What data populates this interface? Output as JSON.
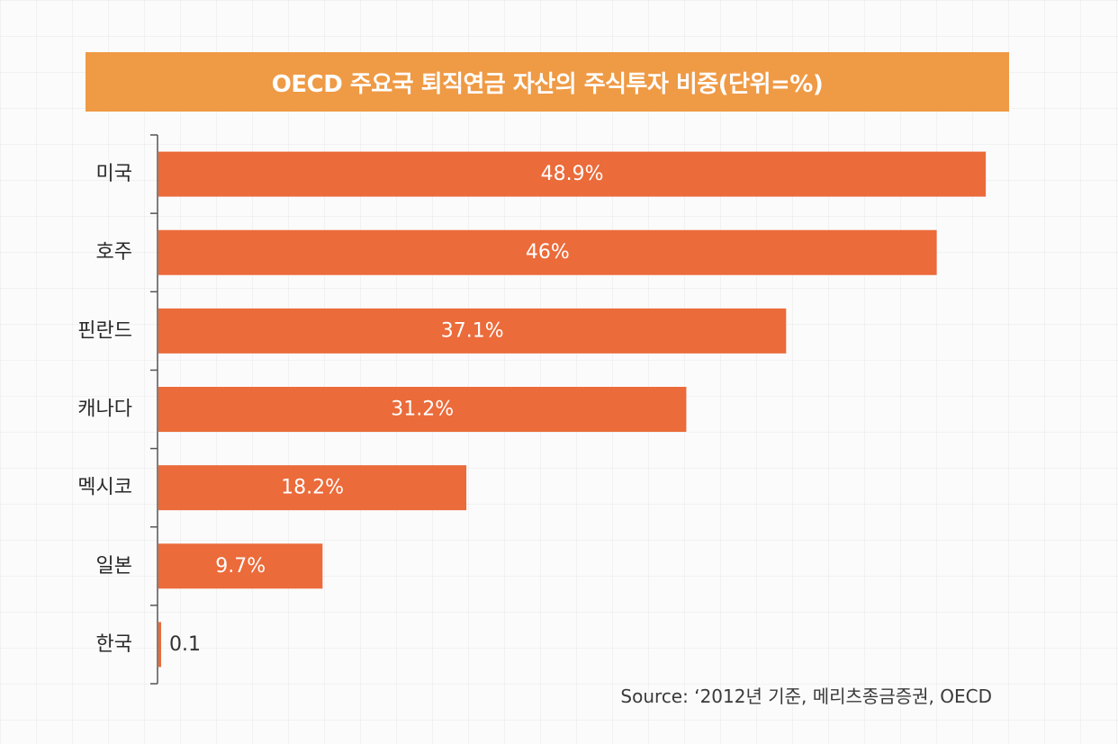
{
  "title": "OECD 주요국 퇴직연금 자산의 주식투자 비중(단위=%)",
  "source": "Source: ‘2012년 기준, 메리츠종금증권, OECD",
  "colors": {
    "bar": "#eb6b3a",
    "banner": "#ef9a45",
    "axis": "#555555",
    "label_inside": "#ffffff",
    "label_outside": "#333333"
  },
  "chart_data": {
    "type": "bar",
    "orientation": "horizontal",
    "title": "OECD 주요국 퇴직연금 자산의 주식투자 비중(단위=%)",
    "categories": [
      "미국",
      "호주",
      "핀란드",
      "캐나다",
      "멕시코",
      "일본",
      "한국"
    ],
    "values": [
      48.9,
      46,
      37.1,
      31.2,
      18.2,
      9.7,
      0.1
    ],
    "value_labels": [
      "48.9%",
      "46%",
      "37.1%",
      "31.2%",
      "18.2%",
      "9.7%",
      "0.1"
    ],
    "xlim": [
      0,
      49
    ],
    "grid": false,
    "legend": "none"
  }
}
